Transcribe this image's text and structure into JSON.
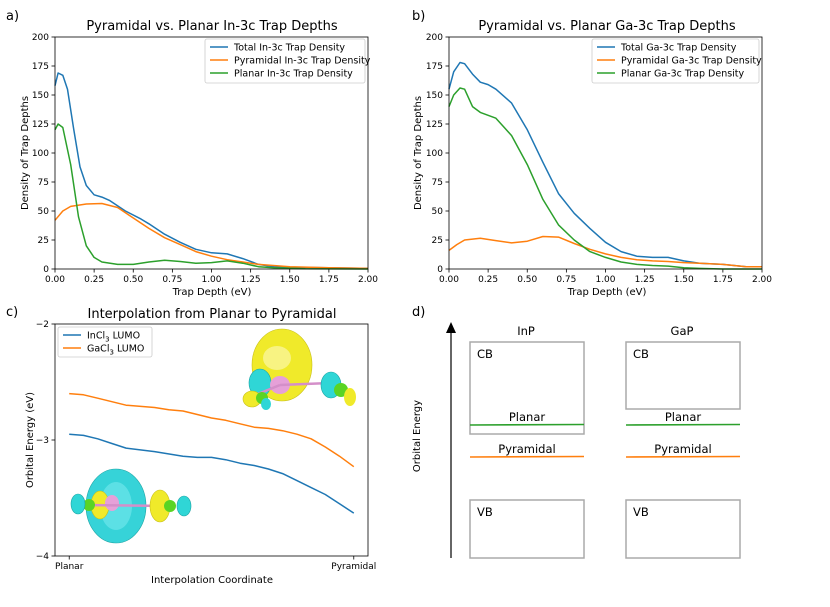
{
  "colors": {
    "blue": "#1f77b4",
    "orange": "#ff7f0e",
    "green": "#2ca02c",
    "box": "#aaaaaa"
  },
  "chart_data": [
    {
      "panel": "a)",
      "type": "line",
      "title": "Pyramidal vs. Planar In-3c Trap Depths",
      "xlabel": "Trap Depth (eV)",
      "ylabel": "Density of Trap Depths",
      "xlim": [
        0,
        2.0
      ],
      "ylim": [
        0,
        200
      ],
      "xticks": [
        "0.00",
        "0.25",
        "0.50",
        "0.75",
        "1.00",
        "1.25",
        "1.50",
        "1.75",
        "2.00"
      ],
      "yticks": [
        "0",
        "25",
        "50",
        "75",
        "100",
        "125",
        "150",
        "175",
        "200"
      ],
      "legend": "top-right",
      "series": [
        {
          "name": "Total In-3c Trap Density",
          "color": "blue",
          "points": [
            [
              0,
              158
            ],
            [
              0.02,
              169
            ],
            [
              0.05,
              167
            ],
            [
              0.08,
              155
            ],
            [
              0.12,
              120
            ],
            [
              0.16,
              88
            ],
            [
              0.2,
              72
            ],
            [
              0.25,
              64
            ],
            [
              0.3,
              62
            ],
            [
              0.35,
              59
            ],
            [
              0.45,
              50
            ],
            [
              0.55,
              43
            ],
            [
              0.6,
              39
            ],
            [
              0.7,
              30
            ],
            [
              0.8,
              23
            ],
            [
              0.9,
              17
            ],
            [
              1.0,
              14
            ],
            [
              1.1,
              13
            ],
            [
              1.2,
              9
            ],
            [
              1.3,
              4
            ],
            [
              1.4,
              2
            ],
            [
              1.5,
              1.5
            ],
            [
              1.75,
              1
            ],
            [
              2.0,
              0.5
            ]
          ]
        },
        {
          "name": "Pyramidal In-3c Trap Density",
          "color": "orange",
          "points": [
            [
              0,
              42
            ],
            [
              0.05,
              50
            ],
            [
              0.1,
              54
            ],
            [
              0.2,
              56
            ],
            [
              0.3,
              56.5
            ],
            [
              0.4,
              53
            ],
            [
              0.5,
              44
            ],
            [
              0.6,
              35
            ],
            [
              0.7,
              27
            ],
            [
              0.8,
              21
            ],
            [
              0.9,
              15
            ],
            [
              1.0,
              11
            ],
            [
              1.1,
              8
            ],
            [
              1.2,
              6
            ],
            [
              1.3,
              4
            ],
            [
              1.5,
              2
            ],
            [
              1.75,
              1
            ],
            [
              2.0,
              0.5
            ]
          ]
        },
        {
          "name": "Planar In-3c Trap Density",
          "color": "green",
          "points": [
            [
              0,
              120
            ],
            [
              0.02,
              125
            ],
            [
              0.05,
              122
            ],
            [
              0.1,
              90
            ],
            [
              0.15,
              45
            ],
            [
              0.2,
              20
            ],
            [
              0.25,
              10
            ],
            [
              0.3,
              6
            ],
            [
              0.4,
              4
            ],
            [
              0.5,
              4
            ],
            [
              0.6,
              6
            ],
            [
              0.7,
              7.5
            ],
            [
              0.8,
              6.5
            ],
            [
              0.9,
              5
            ],
            [
              1.0,
              5.5
            ],
            [
              1.1,
              7
            ],
            [
              1.2,
              5
            ],
            [
              1.3,
              2
            ],
            [
              1.4,
              1
            ],
            [
              1.6,
              0.3
            ],
            [
              2.0,
              0
            ]
          ]
        }
      ]
    },
    {
      "panel": "b)",
      "type": "line",
      "title": "Pyramidal vs. Planar Ga-3c Trap Depths",
      "xlabel": "Trap Depth (eV)",
      "ylabel": "Density of Trap Depths",
      "xlim": [
        0,
        2.0
      ],
      "ylim": [
        0,
        200
      ],
      "xticks": [
        "0.00",
        "0.25",
        "0.50",
        "0.75",
        "1.00",
        "1.25",
        "1.50",
        "1.75",
        "2.00"
      ],
      "yticks": [
        "0",
        "25",
        "50",
        "75",
        "100",
        "125",
        "150",
        "175",
        "200"
      ],
      "legend": "top-right",
      "series": [
        {
          "name": "Total Ga-3c Trap Density",
          "color": "blue",
          "points": [
            [
              0,
              155
            ],
            [
              0.03,
              170
            ],
            [
              0.07,
              178
            ],
            [
              0.1,
              177
            ],
            [
              0.15,
              168
            ],
            [
              0.2,
              161
            ],
            [
              0.25,
              159
            ],
            [
              0.3,
              155
            ],
            [
              0.4,
              143
            ],
            [
              0.5,
              120
            ],
            [
              0.6,
              92
            ],
            [
              0.7,
              65
            ],
            [
              0.8,
              48
            ],
            [
              0.9,
              35
            ],
            [
              1.0,
              23
            ],
            [
              1.1,
              15
            ],
            [
              1.2,
              11
            ],
            [
              1.3,
              10
            ],
            [
              1.4,
              10
            ],
            [
              1.5,
              7
            ],
            [
              1.6,
              5
            ],
            [
              1.75,
              4
            ],
            [
              1.9,
              2
            ],
            [
              2.0,
              2
            ]
          ]
        },
        {
          "name": "Pyramidal Ga-3c Trap Density",
          "color": "orange",
          "points": [
            [
              0,
              16
            ],
            [
              0.05,
              21
            ],
            [
              0.1,
              25
            ],
            [
              0.2,
              26.5
            ],
            [
              0.3,
              24.5
            ],
            [
              0.4,
              22.5
            ],
            [
              0.5,
              24
            ],
            [
              0.6,
              28
            ],
            [
              0.7,
              27.5
            ],
            [
              0.8,
              22
            ],
            [
              0.9,
              17
            ],
            [
              1.0,
              13
            ],
            [
              1.1,
              10
            ],
            [
              1.2,
              8
            ],
            [
              1.3,
              7
            ],
            [
              1.4,
              6.5
            ],
            [
              1.5,
              5.5
            ],
            [
              1.6,
              5
            ],
            [
              1.75,
              4
            ],
            [
              1.9,
              2
            ],
            [
              2.0,
              2
            ]
          ]
        },
        {
          "name": "Planar Ga-3c Trap Density",
          "color": "green",
          "points": [
            [
              0,
              140
            ],
            [
              0.03,
              150
            ],
            [
              0.07,
              156
            ],
            [
              0.1,
              155
            ],
            [
              0.15,
              140
            ],
            [
              0.2,
              135
            ],
            [
              0.3,
              130
            ],
            [
              0.4,
              115
            ],
            [
              0.5,
              90
            ],
            [
              0.6,
              60
            ],
            [
              0.7,
              38
            ],
            [
              0.8,
              25
            ],
            [
              0.9,
              15
            ],
            [
              1.0,
              10
            ],
            [
              1.1,
              6
            ],
            [
              1.2,
              4
            ],
            [
              1.3,
              3
            ],
            [
              1.4,
              2.5
            ],
            [
              1.5,
              1
            ],
            [
              1.6,
              0.5
            ],
            [
              1.75,
              0
            ],
            [
              2.0,
              0
            ]
          ]
        }
      ]
    },
    {
      "panel": "c)",
      "type": "line",
      "title": "Interpolation from Planar to Pyramidal",
      "xlabel": "Interpolation Coordinate",
      "ylabel": "Orbital Energy (eV)",
      "xlim": [
        -0.05,
        1.05
      ],
      "ylim": [
        -4,
        -2
      ],
      "xticks": [
        "Planar",
        "Pyramidal"
      ],
      "yticks": [
        "−4",
        "−3",
        "−2"
      ],
      "legend": "top-left",
      "series": [
        {
          "name": "InCl3 LUMO",
          "name_base": "InCl",
          "name_sub": "3",
          "name_rest": " LUMO",
          "color": "blue",
          "points": [
            [
              0,
              -2.95
            ],
            [
              0.05,
              -2.96
            ],
            [
              0.1,
              -2.99
            ],
            [
              0.15,
              -3.03
            ],
            [
              0.2,
              -3.07
            ],
            [
              0.3,
              -3.1
            ],
            [
              0.4,
              -3.14
            ],
            [
              0.45,
              -3.15
            ],
            [
              0.5,
              -3.15
            ],
            [
              0.55,
              -3.17
            ],
            [
              0.6,
              -3.2
            ],
            [
              0.65,
              -3.22
            ],
            [
              0.7,
              -3.25
            ],
            [
              0.75,
              -3.29
            ],
            [
              0.8,
              -3.35
            ],
            [
              0.85,
              -3.41
            ],
            [
              0.9,
              -3.47
            ],
            [
              0.95,
              -3.55
            ],
            [
              1.0,
              -3.63
            ]
          ]
        },
        {
          "name": "GaCl3 LUMO",
          "name_base": "GaCl",
          "name_sub": "3",
          "name_rest": " LUMO",
          "color": "orange",
          "points": [
            [
              0,
              -2.6
            ],
            [
              0.05,
              -2.61
            ],
            [
              0.1,
              -2.64
            ],
            [
              0.15,
              -2.67
            ],
            [
              0.2,
              -2.7
            ],
            [
              0.3,
              -2.72
            ],
            [
              0.35,
              -2.74
            ],
            [
              0.4,
              -2.75
            ],
            [
              0.45,
              -2.78
            ],
            [
              0.5,
              -2.81
            ],
            [
              0.55,
              -2.83
            ],
            [
              0.6,
              -2.86
            ],
            [
              0.65,
              -2.89
            ],
            [
              0.7,
              -2.9
            ],
            [
              0.75,
              -2.92
            ],
            [
              0.8,
              -2.95
            ],
            [
              0.85,
              -2.99
            ],
            [
              0.9,
              -3.06
            ],
            [
              0.95,
              -3.14
            ],
            [
              1.0,
              -3.23
            ]
          ]
        }
      ]
    }
  ],
  "panel_d": {
    "label": "d)",
    "ylabel": "Orbital Energy",
    "columns": [
      {
        "title": "InP",
        "cb": "CB",
        "vb": "VB",
        "planar": "Planar",
        "pyramidal": "Pyramidal"
      },
      {
        "title": "GaP",
        "cb": "CB",
        "vb": "VB",
        "planar": "Planar",
        "pyramidal": "Pyramidal"
      }
    ]
  }
}
